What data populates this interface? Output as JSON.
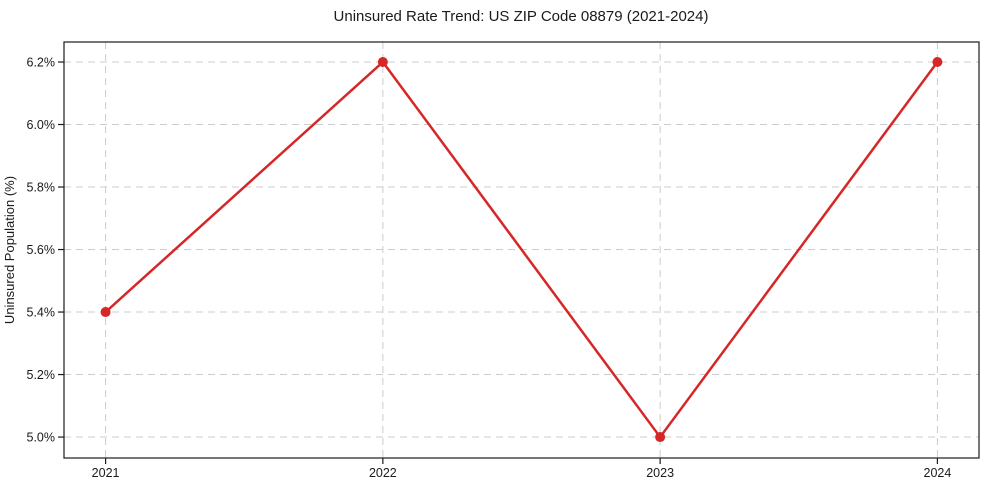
{
  "figure": {
    "title": "Uninsured Rate Trend: US ZIP Code 08879 (2021-2024)"
  },
  "chart_data": {
    "type": "line",
    "title": "Uninsured Rate Trend: US ZIP Code 08879 (2021-2024)",
    "xlabel": "",
    "ylabel": "Uninsured Population (%)",
    "categories": [
      "2021",
      "2022",
      "2023",
      "2024"
    ],
    "series": [
      {
        "name": "Uninsured Population (%)",
        "values": [
          5.4,
          6.2,
          5.0,
          6.2
        ]
      }
    ],
    "y_ticks": [
      5.0,
      5.2,
      5.4,
      5.6,
      5.8,
      6.0,
      6.2
    ],
    "y_tick_labels": [
      "5.0%",
      "5.2%",
      "5.4%",
      "5.6%",
      "5.8%",
      "6.0%",
      "6.2%"
    ],
    "ylim": [
      4.933,
      6.264
    ],
    "grid": true,
    "grid_style": "dashed",
    "legend": false,
    "colors": {
      "line": "#d62728",
      "marker": "#d62728",
      "grid": "#cccccc",
      "spine": "#1a1a1a",
      "text": "#1a1a1a"
    }
  }
}
